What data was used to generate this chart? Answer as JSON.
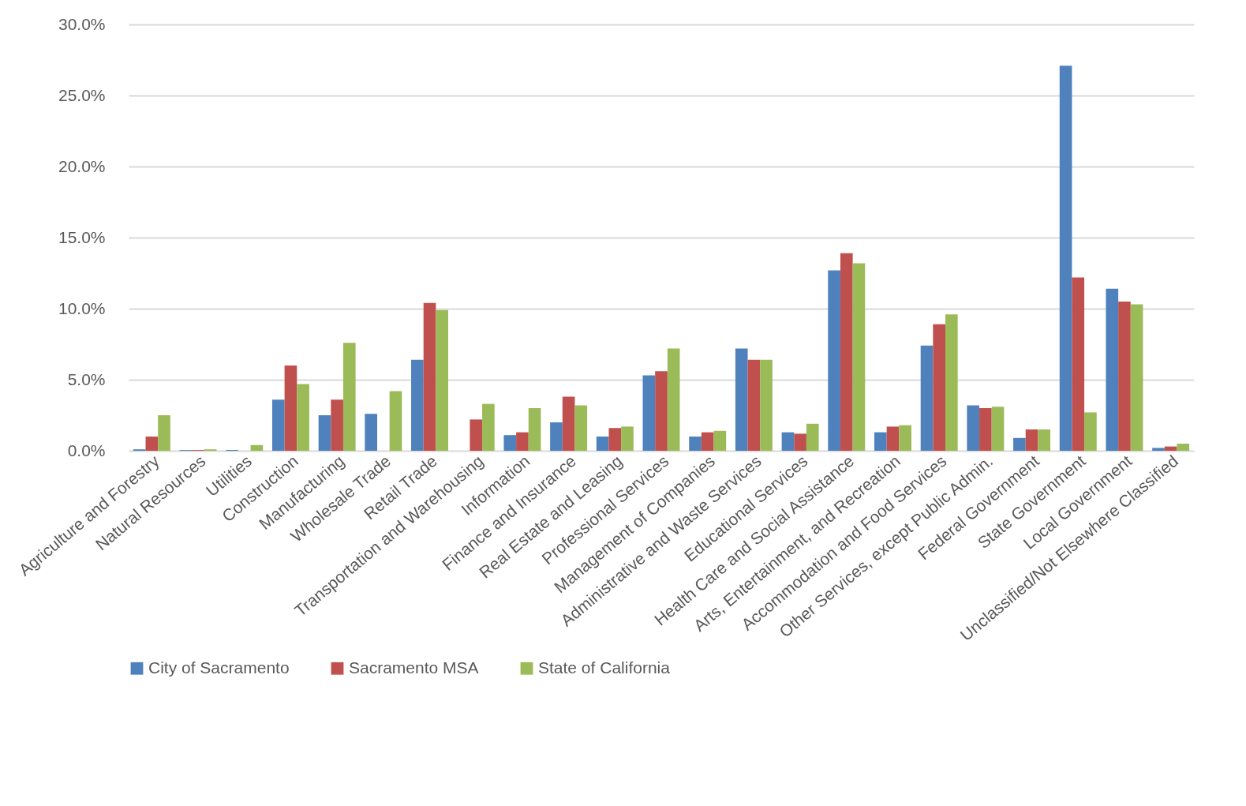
{
  "chart_data": {
    "type": "bar",
    "categories": [
      "Agriculture and Forestry",
      "Natural Resources",
      "Utilities",
      "Construction",
      "Manufacturing",
      "Wholesale Trade",
      "Retail Trade",
      "Transportation and Warehousing",
      "Information",
      "Finance and Insurance",
      "Real Estate and Leasing",
      "Professional Services",
      "Management of Companies",
      "Administrative and Waste Services",
      "Educational Services",
      "Health Care and Social Assistance",
      "Arts, Entertainment, and Recreation",
      "Accommodation and Food Services",
      "Other Services, except Public Admin.",
      "Federal Government",
      "State Government",
      "Local Government",
      "Unclassified/Not Elsewhere Classified"
    ],
    "series": [
      {
        "name": "City of Sacramento",
        "color": "#4f81bd",
        "values": [
          0.1,
          0.05,
          0.05,
          3.6,
          2.5,
          2.6,
          6.4,
          null,
          1.1,
          2.0,
          1.0,
          5.3,
          1.0,
          7.2,
          1.3,
          12.7,
          1.3,
          7.4,
          3.2,
          0.9,
          27.1,
          11.4,
          0.2
        ]
      },
      {
        "name": "Sacramento MSA",
        "color": "#c0504d",
        "values": [
          1.0,
          0.05,
          null,
          6.0,
          3.6,
          null,
          10.4,
          2.2,
          1.3,
          3.8,
          1.6,
          5.6,
          1.3,
          6.4,
          1.2,
          13.9,
          1.7,
          8.9,
          3.0,
          1.5,
          12.2,
          10.5,
          0.3
        ]
      },
      {
        "name": "State of California",
        "color": "#9bbb59",
        "values": [
          2.5,
          0.1,
          0.4,
          4.7,
          7.6,
          4.2,
          9.9,
          3.3,
          3.0,
          3.2,
          1.7,
          7.2,
          1.4,
          6.4,
          1.9,
          13.2,
          1.8,
          9.6,
          3.1,
          1.5,
          2.7,
          10.3,
          0.5
        ]
      }
    ],
    "ylim": [
      0,
      30
    ],
    "yticks": [
      {
        "value": 0,
        "label": "0.0%"
      },
      {
        "value": 5,
        "label": "5.0%"
      },
      {
        "value": 10,
        "label": "10.0%"
      },
      {
        "value": 15,
        "label": "15.0%"
      },
      {
        "value": 20,
        "label": "20.0%"
      },
      {
        "value": 25,
        "label": "25.0%"
      },
      {
        "value": 30,
        "label": "30.0%"
      }
    ],
    "grid": "y",
    "legend": "bottom"
  }
}
